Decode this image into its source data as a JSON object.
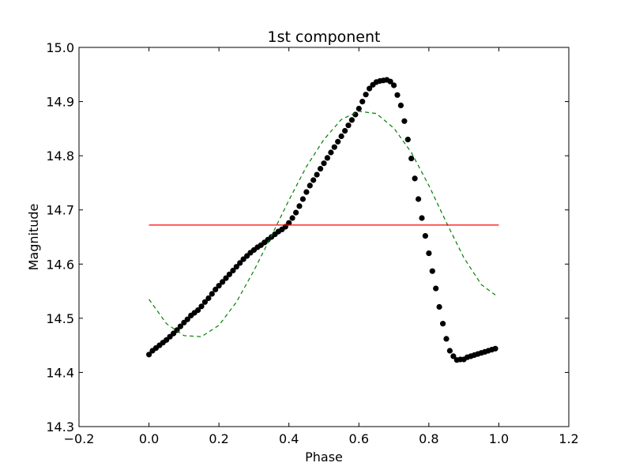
{
  "chart_data": {
    "type": "scatter",
    "title": "1st component",
    "xlabel": "Phase",
    "ylabel": "Magnitude",
    "xlim": [
      -0.2,
      1.2
    ],
    "ylim": [
      14.3,
      15.0
    ],
    "xticks": [
      -0.2,
      0.0,
      0.2,
      0.4,
      0.6,
      0.8,
      1.0,
      1.2
    ],
    "yticks": [
      14.3,
      14.4,
      14.5,
      14.6,
      14.7,
      14.8,
      14.9,
      15.0
    ],
    "xtick_labels": [
      "−0.2",
      "0.0",
      "0.2",
      "0.4",
      "0.6",
      "0.8",
      "1.0",
      "1.2"
    ],
    "ytick_labels": [
      "14.3",
      "14.4",
      "14.5",
      "14.6",
      "14.7",
      "14.8",
      "14.9",
      "15.0"
    ],
    "grid": false,
    "series": [
      {
        "kind": "scatter",
        "color": "#000000",
        "x": [
          0.0,
          0.01,
          0.02,
          0.03,
          0.04,
          0.05,
          0.06,
          0.07,
          0.08,
          0.09,
          0.1,
          0.11,
          0.12,
          0.13,
          0.14,
          0.15,
          0.16,
          0.17,
          0.18,
          0.19,
          0.2,
          0.21,
          0.22,
          0.23,
          0.24,
          0.25,
          0.26,
          0.27,
          0.28,
          0.29,
          0.3,
          0.31,
          0.32,
          0.33,
          0.34,
          0.35,
          0.36,
          0.37,
          0.38,
          0.39,
          0.4,
          0.41,
          0.42,
          0.43,
          0.44,
          0.45,
          0.46,
          0.47,
          0.48,
          0.49,
          0.5,
          0.51,
          0.52,
          0.53,
          0.54,
          0.55,
          0.56,
          0.57,
          0.58,
          0.59,
          0.6,
          0.61,
          0.62,
          0.63,
          0.64,
          0.65,
          0.66,
          0.67,
          0.68,
          0.69,
          0.7,
          0.71,
          0.72,
          0.73,
          0.74,
          0.75,
          0.76,
          0.77,
          0.78,
          0.79,
          0.8,
          0.81,
          0.82,
          0.83,
          0.84,
          0.85,
          0.86,
          0.87,
          0.88,
          0.89,
          0.9,
          0.91,
          0.92,
          0.93,
          0.94,
          0.95,
          0.96,
          0.97,
          0.98,
          0.99
        ],
        "y": [
          14.433,
          14.44,
          14.445,
          14.45,
          14.455,
          14.46,
          14.466,
          14.472,
          14.478,
          14.485,
          14.492,
          14.498,
          14.505,
          14.51,
          14.515,
          14.522,
          14.53,
          14.537,
          14.545,
          14.553,
          14.56,
          14.567,
          14.574,
          14.581,
          14.588,
          14.595,
          14.602,
          14.609,
          14.615,
          14.621,
          14.626,
          14.631,
          14.635,
          14.64,
          14.645,
          14.65,
          14.655,
          14.66,
          14.664,
          14.669,
          14.676,
          14.685,
          14.695,
          14.707,
          14.72,
          14.733,
          14.745,
          14.755,
          14.765,
          14.776,
          14.786,
          14.796,
          14.806,
          14.816,
          14.826,
          14.836,
          14.846,
          14.856,
          14.866,
          14.876,
          14.887,
          14.9,
          14.913,
          14.924,
          14.931,
          14.936,
          14.938,
          14.939,
          14.94,
          14.937,
          14.93,
          14.912,
          14.893,
          14.864,
          14.83,
          14.795,
          14.758,
          14.72,
          14.685,
          14.652,
          14.62,
          14.587,
          14.555,
          14.521,
          14.49,
          14.462,
          14.44,
          14.43,
          14.423,
          14.424,
          14.424,
          14.428,
          14.43,
          14.432,
          14.434,
          14.436,
          14.438,
          14.44,
          14.442,
          14.444
        ]
      },
      {
        "kind": "line",
        "color": "#ff0000",
        "style": "solid",
        "x": [
          0.0,
          1.0
        ],
        "y": [
          14.672,
          14.672
        ]
      },
      {
        "kind": "line",
        "color": "#008000",
        "style": "dashed",
        "x": [
          0.0,
          0.05,
          0.1,
          0.15,
          0.2,
          0.25,
          0.3,
          0.35,
          0.4,
          0.45,
          0.5,
          0.55,
          0.6,
          0.65,
          0.7,
          0.75,
          0.8,
          0.85,
          0.9,
          0.95,
          0.99
        ],
        "y": [
          14.535,
          14.49,
          14.468,
          14.466,
          14.487,
          14.53,
          14.588,
          14.652,
          14.718,
          14.78,
          14.83,
          14.867,
          14.882,
          14.878,
          14.851,
          14.806,
          14.745,
          14.677,
          14.612,
          14.562,
          14.543
        ]
      }
    ]
  }
}
